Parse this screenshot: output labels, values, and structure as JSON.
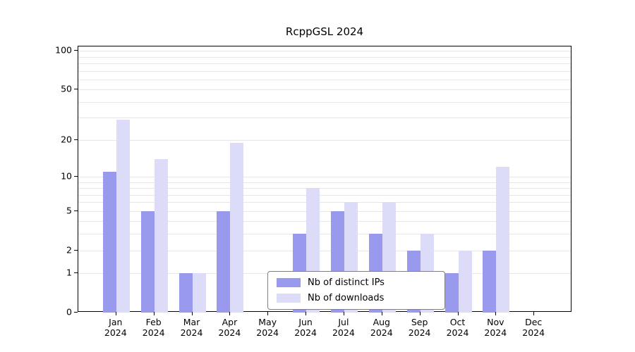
{
  "chart_data": {
    "type": "bar",
    "title": "RcppGSL 2024",
    "categories": [
      "Jan 2024",
      "Feb 2024",
      "Mar 2024",
      "Apr 2024",
      "May 2024",
      "Jun 2024",
      "Jul 2024",
      "Aug 2024",
      "Sep 2024",
      "Oct 2024",
      "Nov 2024",
      "Dec 2024"
    ],
    "series": [
      {
        "name": "Nb of distinct IPs",
        "color": "#9999ed",
        "values": [
          11,
          5,
          1,
          5,
          0,
          3,
          5,
          3,
          2,
          1,
          2,
          0
        ]
      },
      {
        "name": "Nb of downloads",
        "color": "#dcdcf9",
        "values": [
          29,
          14,
          1,
          19,
          0,
          8,
          6,
          6,
          3,
          2,
          12,
          0
        ]
      }
    ],
    "yscale": "log1p",
    "ylim": [
      0,
      100
    ],
    "yticks": [
      0,
      1,
      2,
      5,
      10,
      20,
      50,
      100
    ],
    "minor_gridlines": [
      1,
      2,
      3,
      4,
      5,
      6,
      7,
      8,
      9,
      10,
      20,
      30,
      40,
      50,
      60,
      70,
      80,
      90,
      100
    ],
    "grid": true,
    "legend": {
      "position": "bottom-center-inside",
      "entries": [
        "Nb of distinct IPs",
        "Nb of downloads"
      ]
    }
  }
}
